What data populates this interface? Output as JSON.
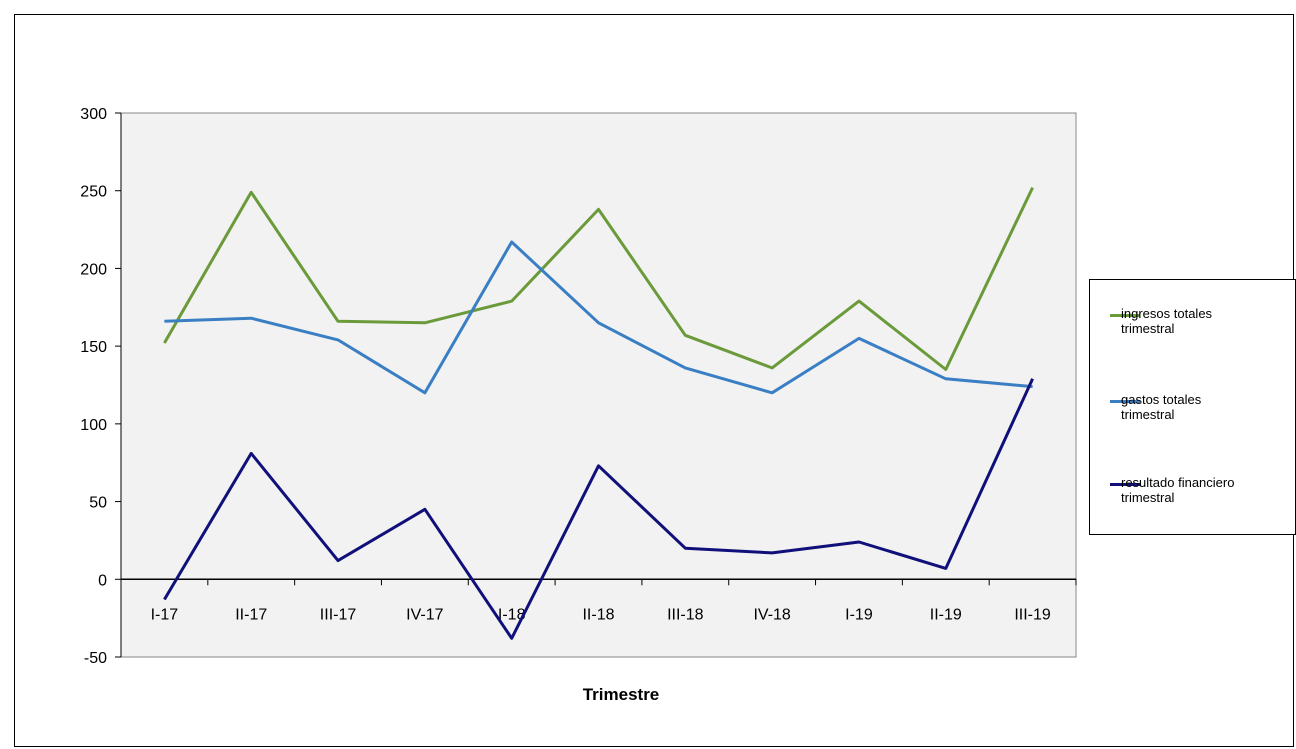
{
  "chart_data": {
    "type": "line",
    "categories": [
      "I-17",
      "II-17",
      "III-17",
      "IV-17",
      "I-18",
      "II-18",
      "III-18",
      "IV-18",
      "I-19",
      "II-19",
      "III-19"
    ],
    "series": [
      {
        "name": "ingresos totales trimestral",
        "color": "#6a9a3a",
        "values": [
          152,
          249,
          166,
          165,
          179,
          238,
          157,
          136,
          179,
          135,
          252
        ]
      },
      {
        "name": "gastos totales trimestral",
        "color": "#3a7ec4",
        "values": [
          166,
          168,
          154,
          120,
          217,
          165,
          136,
          120,
          155,
          129,
          124
        ]
      },
      {
        "name": "resultado financiero trimestral",
        "color": "#10107a",
        "values": [
          -13,
          81,
          12,
          45,
          -38,
          73,
          20,
          17,
          24,
          7,
          129
        ]
      }
    ],
    "xlabel": "Trimestre",
    "ylabel": "",
    "ylim": [
      -50,
      300
    ],
    "yticks": [
      "-50",
      "0",
      "50",
      "100",
      "150",
      "200",
      "250",
      "300"
    ],
    "grid": false,
    "legend_position": "right"
  },
  "legend": {
    "items": [
      {
        "label": "ingresos totales\ntrimestral"
      },
      {
        "label": "gastos totales\ntrimestral"
      },
      {
        "label": "resultado financiero\ntrimestral"
      }
    ]
  }
}
